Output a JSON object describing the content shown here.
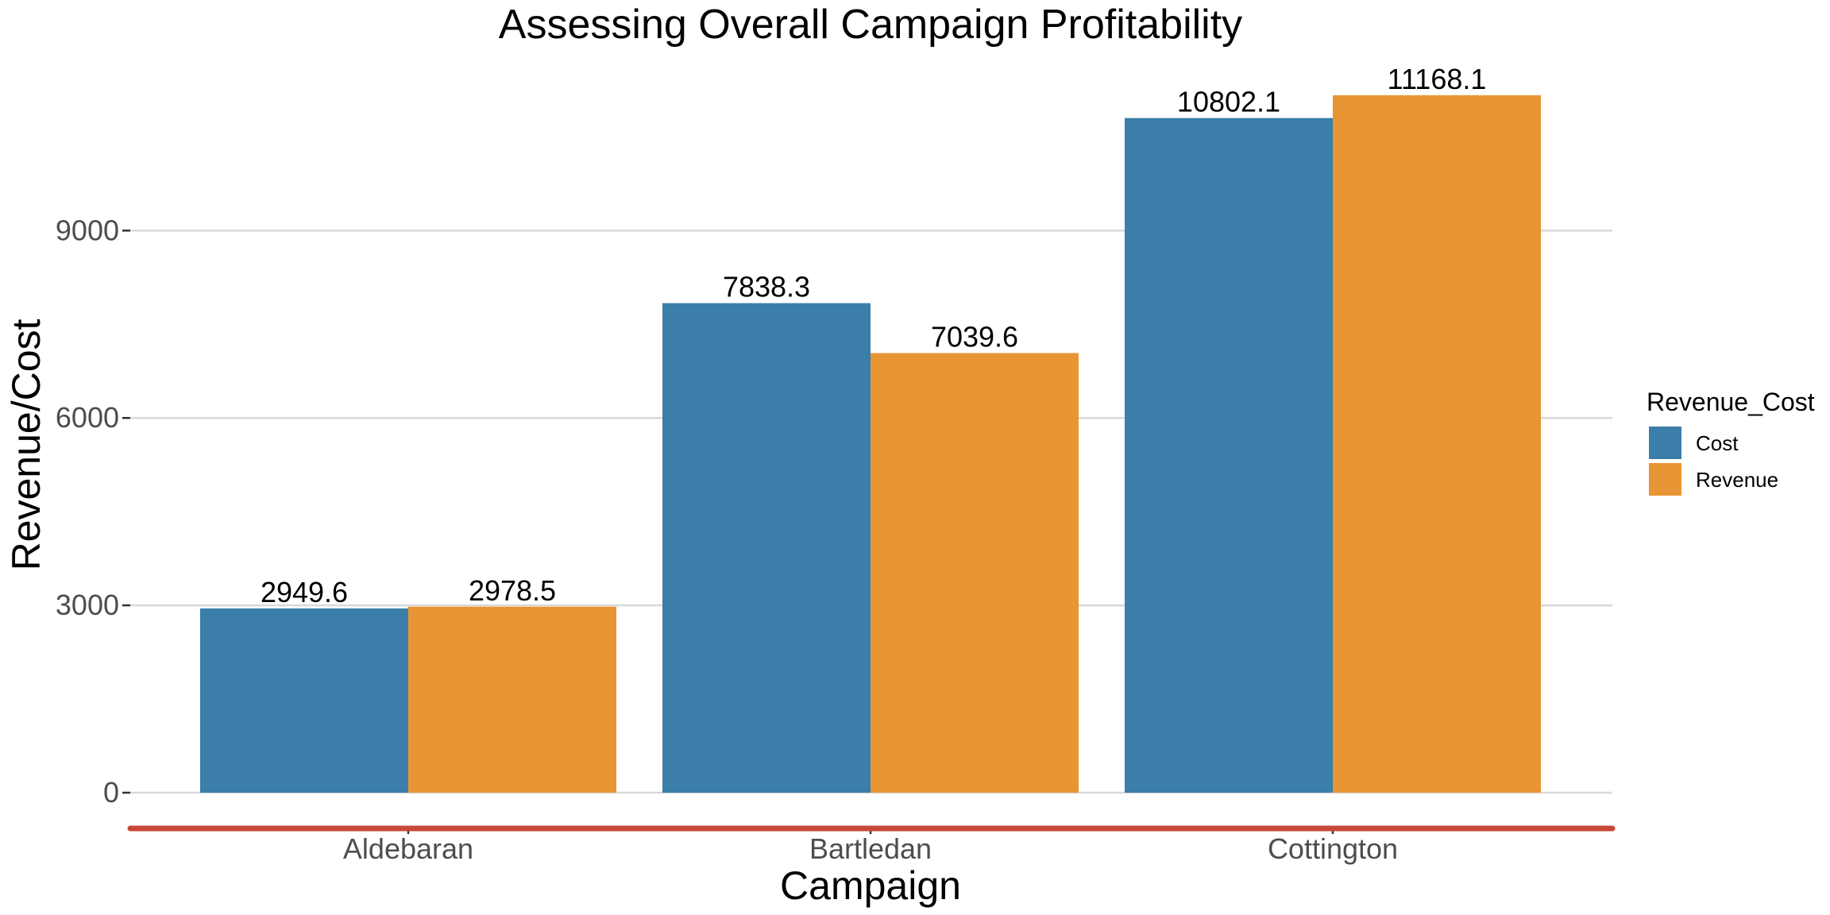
{
  "chart_data": {
    "type": "bar",
    "title": "Assessing Overall Campaign Profitability",
    "xlabel": "Campaign",
    "ylabel": "Revenue/Cost",
    "categories": [
      "Aldebaran",
      "Bartledan",
      "Cottington"
    ],
    "series": [
      {
        "name": "Cost",
        "color": "#3a7ea9",
        "values": [
          2949.6,
          7838.3,
          10802.1
        ]
      },
      {
        "name": "Revenue",
        "color": "#e89535",
        "values": [
          2978.5,
          7039.6,
          11168.1
        ]
      }
    ],
    "ylim": [
      0,
      11168.1
    ],
    "yticks": [
      0,
      3000,
      6000,
      9000
    ],
    "grid": true,
    "legend": {
      "title": "Revenue_Cost",
      "position": "right"
    },
    "baseline_color": "#c9483a"
  }
}
